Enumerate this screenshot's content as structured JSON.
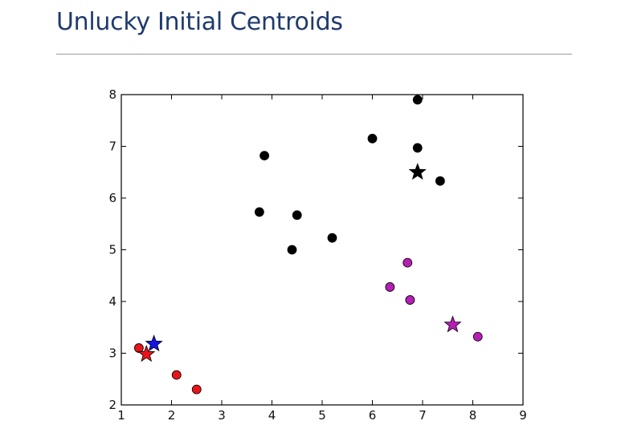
{
  "slide": {
    "title": "Unlucky Initial Centroids"
  },
  "colors": {
    "cluster_black": "#000000",
    "cluster_magenta": "#b51fb5",
    "cluster_red": "#e8141a",
    "centroid_blue": "#1414e6",
    "title_color": "#1f3a6e"
  },
  "chart_data": {
    "type": "scatter",
    "title": "",
    "xlabel": "",
    "ylabel": "",
    "xlim": [
      1,
      9
    ],
    "ylim": [
      2,
      8
    ],
    "xticks": [
      "1",
      "2",
      "3",
      "4",
      "5",
      "6",
      "7",
      "8",
      "9"
    ],
    "yticks": [
      "2",
      "3",
      "4",
      "5",
      "6",
      "7",
      "8"
    ],
    "grid": false,
    "series": [
      {
        "color": "#000000",
        "marker": "circle",
        "points": [
          [
            6.9,
            7.9
          ],
          [
            6.0,
            7.15
          ],
          [
            6.9,
            6.97
          ],
          [
            3.85,
            6.82
          ],
          [
            7.35,
            6.33
          ],
          [
            3.75,
            5.73
          ],
          [
            4.5,
            5.67
          ],
          [
            5.2,
            5.23
          ],
          [
            4.4,
            5.0
          ]
        ]
      },
      {
        "color": "#b51fb5",
        "marker": "circle",
        "points": [
          [
            6.7,
            4.75
          ],
          [
            6.35,
            4.28
          ],
          [
            6.75,
            4.03
          ],
          [
            8.1,
            3.32
          ]
        ]
      },
      {
        "color": "#e8141a",
        "marker": "circle",
        "points": [
          [
            1.35,
            3.1
          ],
          [
            2.1,
            2.58
          ],
          [
            2.5,
            2.3
          ]
        ]
      }
    ],
    "centroids": [
      {
        "color": "#000000",
        "x": 6.9,
        "y": 6.5
      },
      {
        "color": "#b51fb5",
        "x": 7.6,
        "y": 3.55
      },
      {
        "color": "#1414e6",
        "x": 1.65,
        "y": 3.18
      },
      {
        "color": "#e8141a",
        "x": 1.5,
        "y": 2.98
      }
    ]
  }
}
